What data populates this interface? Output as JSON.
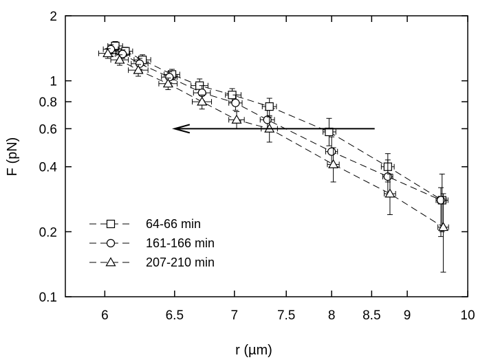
{
  "chart_data": {
    "type": "scatter",
    "xlabel": "r (µm)",
    "ylabel": "F (pN)",
    "x_scale": "reciprocal",
    "y_scale": "log",
    "xlim": [
      5.75,
      10
    ],
    "ylim": [
      0.1,
      2
    ],
    "x_ticks": [
      {
        "value": 6,
        "label": "6"
      },
      {
        "value": 6.5,
        "label": "6.5"
      },
      {
        "value": 7,
        "label": "7"
      },
      {
        "value": 7.5,
        "label": "7.5"
      },
      {
        "value": 8,
        "label": "8"
      },
      {
        "value": 8.5,
        "label": "8.5"
      },
      {
        "value": 9,
        "label": "9"
      },
      {
        "value": 10,
        "label": "10"
      }
    ],
    "y_ticks": [
      {
        "value": 0.1,
        "label": "0.1"
      },
      {
        "value": 0.2,
        "label": "0.2"
      },
      {
        "value": 0.4,
        "label": "0.4"
      },
      {
        "value": 0.6,
        "label": "0.6"
      },
      {
        "value": 0.8,
        "label": "0.8"
      },
      {
        "value": 1,
        "label": "1"
      },
      {
        "value": 2,
        "label": "2"
      }
    ],
    "legend_position": "bottom-left",
    "grid": false,
    "series": [
      {
        "name": "64-66 min",
        "marker": "square",
        "points": [
          {
            "x": 6.07,
            "y": 1.45,
            "yerr": [
              1.38,
              1.52
            ],
            "xerr": [
              6.02,
              6.12
            ]
          },
          {
            "x": 6.14,
            "y": 1.37,
            "yerr": [
              1.31,
              1.43
            ],
            "xerr": [
              6.09,
              6.19
            ]
          },
          {
            "x": 6.26,
            "y": 1.25,
            "yerr": [
              1.18,
              1.32
            ],
            "xerr": [
              6.2,
              6.32
            ]
          },
          {
            "x": 6.48,
            "y": 1.07,
            "yerr": [
              1.01,
              1.13
            ],
            "xerr": [
              6.42,
              6.54
            ]
          },
          {
            "x": 6.7,
            "y": 0.95,
            "yerr": [
              0.88,
              1.02
            ],
            "xerr": [
              6.63,
              6.77
            ]
          },
          {
            "x": 6.98,
            "y": 0.86,
            "yerr": [
              0.8,
              0.92
            ],
            "xerr": [
              6.92,
              7.06
            ]
          },
          {
            "x": 7.33,
            "y": 0.76,
            "yerr": [
              0.69,
              0.83
            ],
            "xerr": [
              7.26,
              7.4
            ]
          },
          {
            "x": 7.97,
            "y": 0.58,
            "yerr": [
              0.5,
              0.67
            ],
            "xerr": [
              7.9,
              8.05
            ]
          },
          {
            "x": 8.72,
            "y": 0.4,
            "yerr": [
              0.34,
              0.46
            ],
            "xerr": [
              8.63,
              8.81
            ]
          },
          {
            "x": 9.55,
            "y": 0.28,
            "yerr": [
              0.2,
              0.37
            ],
            "xerr": [
              9.47,
              9.65
            ]
          }
        ]
      },
      {
        "name": "161-166 min",
        "marker": "circle",
        "points": [
          {
            "x": 6.04,
            "y": 1.4,
            "yerr": [
              1.33,
              1.47
            ],
            "xerr": [
              5.99,
              6.09
            ]
          },
          {
            "x": 6.12,
            "y": 1.33,
            "yerr": [
              1.27,
              1.39
            ],
            "xerr": [
              6.07,
              6.17
            ]
          },
          {
            "x": 6.24,
            "y": 1.2,
            "yerr": [
              1.13,
              1.27
            ],
            "xerr": [
              6.18,
              6.3
            ]
          },
          {
            "x": 6.46,
            "y": 1.04,
            "yerr": [
              0.98,
              1.1
            ],
            "xerr": [
              6.4,
              6.52
            ]
          },
          {
            "x": 6.72,
            "y": 0.88,
            "yerr": [
              0.81,
              0.95
            ],
            "xerr": [
              6.65,
              6.79
            ]
          },
          {
            "x": 7.01,
            "y": 0.79,
            "yerr": [
              0.73,
              0.86
            ],
            "xerr": [
              6.95,
              7.07
            ]
          },
          {
            "x": 7.31,
            "y": 0.66,
            "yerr": [
              0.6,
              0.73
            ],
            "xerr": [
              7.24,
              7.38
            ]
          },
          {
            "x": 8.0,
            "y": 0.47,
            "yerr": [
              0.4,
              0.55
            ],
            "xerr": [
              7.93,
              8.07
            ]
          },
          {
            "x": 8.72,
            "y": 0.36,
            "yerr": [
              0.29,
              0.43
            ],
            "xerr": [
              8.65,
              8.79
            ]
          },
          {
            "x": 9.53,
            "y": 0.28,
            "yerr": [
              0.19,
              0.32
            ],
            "xerr": [
              9.45,
              9.62
            ]
          }
        ]
      },
      {
        "name": "207-210 min",
        "marker": "triangle",
        "points": [
          {
            "x": 6.02,
            "y": 1.34,
            "yerr": [
              1.27,
              1.41
            ],
            "xerr": [
              5.96,
              6.08
            ]
          },
          {
            "x": 6.1,
            "y": 1.25,
            "yerr": [
              1.18,
              1.32
            ],
            "xerr": [
              6.04,
              6.16
            ]
          },
          {
            "x": 6.23,
            "y": 1.12,
            "yerr": [
              1.05,
              1.19
            ],
            "xerr": [
              6.16,
              6.3
            ]
          },
          {
            "x": 6.45,
            "y": 0.97,
            "yerr": [
              0.91,
              1.03
            ],
            "xerr": [
              6.38,
              6.52
            ]
          },
          {
            "x": 6.72,
            "y": 0.8,
            "yerr": [
              0.74,
              0.86
            ],
            "xerr": [
              6.64,
              6.8
            ]
          },
          {
            "x": 7.02,
            "y": 0.66,
            "yerr": [
              0.6,
              0.72
            ],
            "xerr": [
              6.95,
              7.09
            ]
          },
          {
            "x": 7.33,
            "y": 0.6,
            "yerr": [
              0.52,
              0.68
            ],
            "xerr": [
              7.25,
              7.41
            ]
          },
          {
            "x": 8.02,
            "y": 0.41,
            "yerr": [
              0.34,
              0.49
            ],
            "xerr": [
              7.95,
              8.09
            ]
          },
          {
            "x": 8.75,
            "y": 0.3,
            "yerr": [
              0.24,
              0.37
            ],
            "xerr": [
              8.67,
              8.83
            ]
          },
          {
            "x": 9.57,
            "y": 0.21,
            "yerr": [
              0.13,
              0.3
            ],
            "xerr": [
              9.48,
              9.66
            ]
          }
        ]
      }
    ],
    "annotations": [
      {
        "type": "arrow",
        "direction": "left",
        "from": {
          "x": 8.54,
          "y": 0.6
        },
        "to": {
          "x": 6.5,
          "y": 0.6
        }
      }
    ]
  }
}
